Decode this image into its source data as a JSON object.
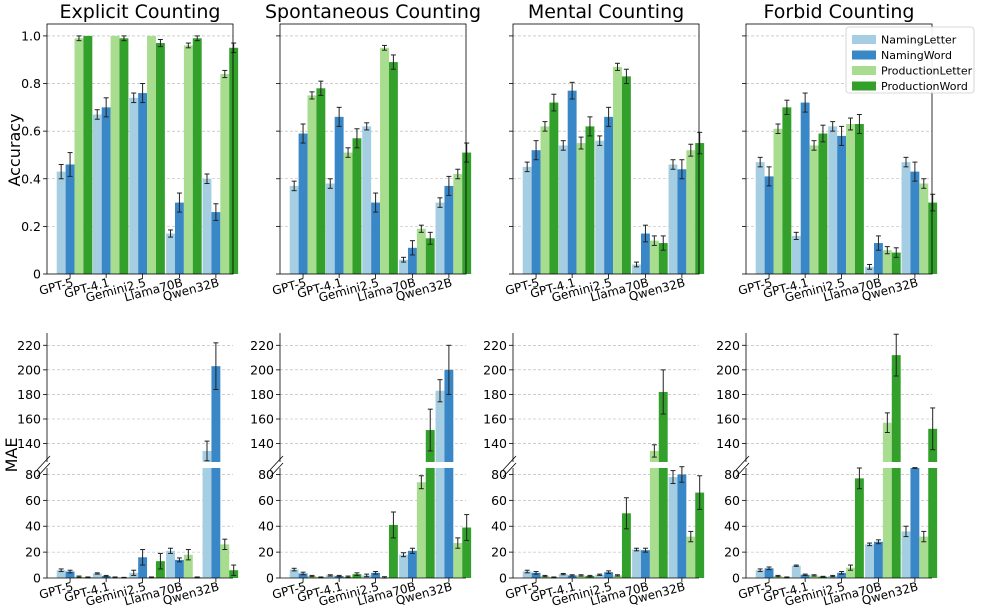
{
  "chart_data": {
    "type": "bar",
    "models": [
      "GPT-5",
      "GPT-4.1",
      "Gemini2.5",
      "Llama70B",
      "Qwen32B"
    ],
    "legend": [
      {
        "name": "NamingLetter",
        "color": "#a6cee3"
      },
      {
        "name": "NamingWord",
        "color": "#3a87c7"
      },
      {
        "name": "ProductionLetter",
        "color": "#a8dd8f"
      },
      {
        "name": "ProductionWord",
        "color": "#33a02c"
      }
    ],
    "accuracy_ylabel": "Accuracy",
    "accuracy_ylim": [
      0,
      1.05
    ],
    "accuracy_yticks": [
      "0",
      "0.2",
      "0.4",
      "0.6",
      "0.8",
      "1.0"
    ],
    "mae_ylabel": "MAE",
    "mae_upper_ylim": [
      125,
      230
    ],
    "mae_upper_yticks": [
      "140",
      "160",
      "180",
      "200",
      "220"
    ],
    "mae_lower_ylim": [
      0,
      85
    ],
    "mae_lower_yticks": [
      "0",
      "20",
      "40",
      "60",
      "80"
    ],
    "panels": [
      {
        "title": "Explicit Counting",
        "accuracy": [
          [
            0.43,
            0.46,
            0.99,
            1.0
          ],
          [
            0.67,
            0.7,
            1.0,
            0.99
          ],
          [
            0.74,
            0.76,
            1.0,
            0.97
          ],
          [
            0.17,
            0.3,
            0.96,
            0.99
          ],
          [
            0.4,
            0.26,
            0.84,
            0.95
          ]
        ],
        "accuracy_err": [
          [
            0.03,
            0.05,
            0.01,
            0.0
          ],
          [
            0.02,
            0.04,
            0.0,
            0.01
          ],
          [
            0.02,
            0.04,
            0.0,
            0.015
          ],
          [
            0.015,
            0.04,
            0.01,
            0.01
          ],
          [
            0.02,
            0.035,
            0.015,
            0.02
          ]
        ],
        "mae": [
          [
            6,
            5,
            1,
            0.5
          ],
          [
            3.5,
            1.5,
            0.5,
            0.3
          ],
          [
            4,
            16,
            0.5,
            13
          ],
          [
            21,
            14,
            18,
            0.5
          ],
          [
            134,
            203,
            26,
            6
          ]
        ],
        "mae_err": [
          [
            1,
            1,
            0.5,
            0.3
          ],
          [
            0.5,
            0.5,
            0.3,
            0.2
          ],
          [
            2,
            6,
            0.3,
            6
          ],
          [
            2,
            1.5,
            4,
            0.3
          ],
          [
            8,
            19,
            4,
            4
          ]
        ]
      },
      {
        "title": "Spontaneous Counting",
        "accuracy": [
          [
            0.37,
            0.59,
            0.75,
            0.78
          ],
          [
            0.38,
            0.66,
            0.51,
            0.57
          ],
          [
            0.62,
            0.3,
            0.95,
            0.89
          ],
          [
            0.06,
            0.11,
            0.19,
            0.15
          ],
          [
            0.3,
            0.37,
            0.42,
            0.51
          ]
        ],
        "accuracy_err": [
          [
            0.02,
            0.04,
            0.015,
            0.03
          ],
          [
            0.02,
            0.04,
            0.02,
            0.04
          ],
          [
            0.015,
            0.04,
            0.01,
            0.03
          ],
          [
            0.01,
            0.03,
            0.015,
            0.025
          ],
          [
            0.02,
            0.04,
            0.02,
            0.04
          ]
        ],
        "mae": [
          [
            6.5,
            3.5,
            1.5,
            0.5
          ],
          [
            2,
            1.5,
            1,
            3
          ],
          [
            2,
            4,
            0.5,
            41
          ],
          [
            18,
            21,
            74,
            151
          ],
          [
            183,
            200,
            27,
            39
          ]
        ],
        "mae_err": [
          [
            1,
            1,
            0.5,
            0.3
          ],
          [
            0.5,
            0.5,
            0.5,
            1
          ],
          [
            1,
            1,
            0.5,
            10
          ],
          [
            1.5,
            2,
            5,
            17
          ],
          [
            9,
            20,
            4,
            10
          ]
        ]
      },
      {
        "title": "Mental Counting",
        "accuracy": [
          [
            0.45,
            0.52,
            0.62,
            0.72
          ],
          [
            0.54,
            0.77,
            0.55,
            0.62
          ],
          [
            0.56,
            0.66,
            0.87,
            0.83
          ],
          [
            0.04,
            0.17,
            0.14,
            0.13
          ],
          [
            0.46,
            0.44,
            0.52,
            0.55
          ]
        ],
        "accuracy_err": [
          [
            0.02,
            0.04,
            0.02,
            0.035
          ],
          [
            0.02,
            0.035,
            0.025,
            0.04
          ],
          [
            0.02,
            0.04,
            0.015,
            0.03
          ],
          [
            0.01,
            0.035,
            0.02,
            0.03
          ],
          [
            0.02,
            0.04,
            0.025,
            0.045
          ]
        ],
        "mae": [
          [
            5,
            4,
            1.5,
            0.5
          ],
          [
            3,
            2,
            2,
            1.5
          ],
          [
            2.5,
            4.5,
            2,
            50
          ],
          [
            22,
            21.5,
            134,
            182
          ],
          [
            78,
            80,
            32,
            66
          ]
        ],
        "mae_err": [
          [
            1,
            1,
            0.5,
            0.3
          ],
          [
            0.5,
            0.5,
            0.5,
            0.5
          ],
          [
            0.5,
            1,
            0.5,
            12
          ],
          [
            1,
            1.5,
            5,
            18
          ],
          [
            5,
            6,
            4,
            13
          ]
        ]
      },
      {
        "title": "Forbid Counting",
        "accuracy": [
          [
            0.47,
            0.41,
            0.61,
            0.7
          ],
          [
            0.16,
            0.72,
            0.54,
            0.59
          ],
          [
            0.62,
            0.58,
            0.63,
            0.63
          ],
          [
            0.03,
            0.13,
            0.1,
            0.09
          ],
          [
            0.47,
            0.43,
            0.38,
            0.3
          ]
        ],
        "accuracy_err": [
          [
            0.02,
            0.04,
            0.02,
            0.03
          ],
          [
            0.015,
            0.04,
            0.02,
            0.035
          ],
          [
            0.02,
            0.04,
            0.025,
            0.04
          ],
          [
            0.01,
            0.03,
            0.015,
            0.02
          ],
          [
            0.02,
            0.04,
            0.02,
            0.035
          ]
        ],
        "mae": [
          [
            6,
            7.5,
            1.5,
            0.5
          ],
          [
            9.5,
            2.5,
            2,
            1
          ],
          [
            1.5,
            4,
            8,
            77
          ],
          [
            26,
            28,
            157,
            212
          ],
          [
            36,
            85,
            32,
            152
          ]
        ],
        "mae_err": [
          [
            1,
            1,
            0.5,
            0.3
          ],
          [
            0.5,
            0.5,
            0.5,
            0.3
          ],
          [
            0.5,
            1,
            2,
            8
          ],
          [
            1,
            1.5,
            8,
            17
          ],
          [
            4,
            0.3,
            4,
            17
          ]
        ]
      }
    ]
  }
}
